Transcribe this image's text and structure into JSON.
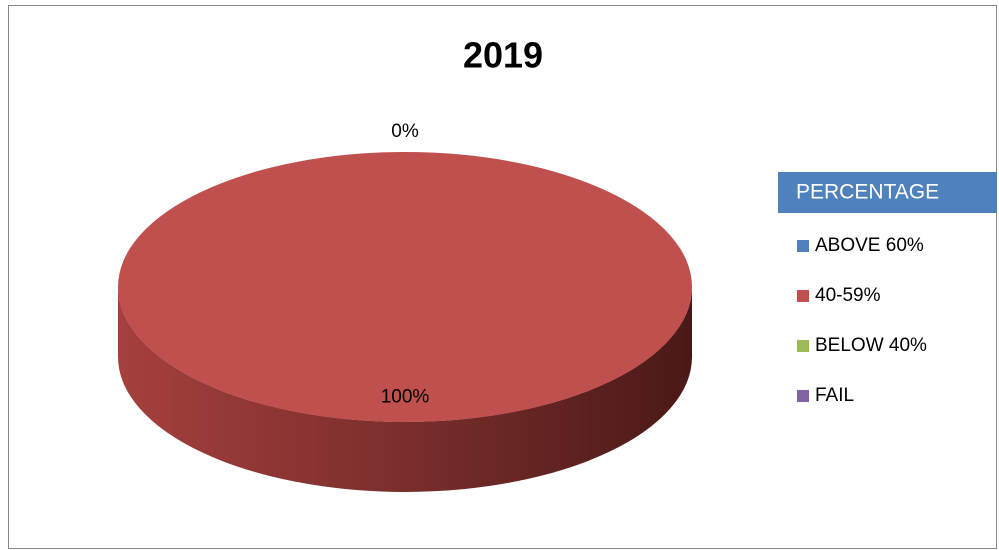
{
  "chart_data": {
    "type": "pie",
    "title": "2019",
    "categories": [
      "ABOVE 60%",
      "40-59%",
      "BELOW 40%",
      "FAIL"
    ],
    "series": [
      {
        "name": "PERCENTAGE",
        "colors": [
          "#4f81bd",
          "#c0504d",
          "#9bbb59",
          "#8064a2"
        ],
        "values": [
          0,
          100,
          0,
          0
        ],
        "value_labels": [
          "0%",
          "100%",
          null,
          null
        ]
      }
    ],
    "legend": "right"
  }
}
